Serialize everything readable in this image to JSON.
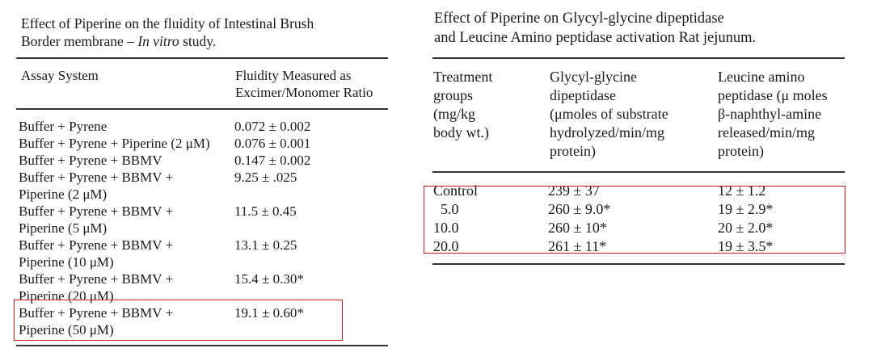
{
  "left_table": {
    "caption_line1": "Effect of Piperine on the fluidity of Intestinal Brush",
    "caption_line2_plain": "Border membrane – ",
    "caption_line2_italic": "In vitro",
    "caption_line2_end": " study.",
    "header_col1": "Assay System",
    "header_col2_line1": "Fluidity Measured as",
    "header_col2_line2": "Excimer/Monomer Ratio",
    "rows": [
      {
        "system_line1": "Buffer + Pyrene",
        "system_line2": "",
        "value": "0.072 ± 0.002"
      },
      {
        "system_line1": "Buffer + Pyrene + Piperine (2 μM)",
        "system_line2": "",
        "value": "0.076 ± 0.001"
      },
      {
        "system_line1": "Buffer + Pyrene + BBMV",
        "system_line2": "",
        "value": "0.147 ± 0.002"
      },
      {
        "system_line1": "Buffer + Pyrene + BBMV +",
        "system_line2": "Piperine (2 μM)",
        "value": "9.25 ± .025"
      },
      {
        "system_line1": "Buffer + Pyrene + BBMV +",
        "system_line2": "Piperine (5 μM)",
        "value": "11.5 ± 0.45"
      },
      {
        "system_line1": "Buffer + Pyrene + BBMV +",
        "system_line2": "Piperine (10 μM)",
        "value": "13.1 ± 0.25"
      },
      {
        "system_line1": "Buffer + Pyrene + BBMV +",
        "system_line2": "Piperine (20 μM)",
        "value": "15.4 ± 0.30*"
      },
      {
        "system_line1": "Buffer + Pyrene + BBMV +",
        "system_line2": "Piperine (50 μM)",
        "value": "19.1 ± 0.60*"
      }
    ]
  },
  "right_table": {
    "caption_line1": "Effect of Piperine on Glycyl-glycine dipeptidase",
    "caption_line2": "and Leucine Amino peptidase activation Rat jejunum.",
    "header_col1": [
      "Treatment",
      "groups",
      "(mg/kg",
      "body wt.)"
    ],
    "header_col2": [
      "Glycyl-glycine",
      "dipeptidase",
      "(μmoles of substrate",
      "hydrolyzed/min/mg",
      "protein)"
    ],
    "header_col3": [
      "Leucine amino",
      "peptidase (μ moles",
      "β-naphthyl-amine",
      "released/min/mg",
      "protein)"
    ],
    "rows": [
      {
        "group": "Control",
        "glycyl": "239 ± 37",
        "leucine": "12 ± 1.2"
      },
      {
        "group": "5.0",
        "glycyl": "260 ± 9.0*",
        "leucine": "19 ± 2.9*"
      },
      {
        "group": "10.0",
        "glycyl": "260 ± 10*",
        "leucine": "20 ± 2.0*"
      },
      {
        "group": "20.0",
        "glycyl": "261 ± 11*",
        "leucine": "19 ± 3.5*"
      }
    ]
  },
  "colors": {
    "highlight": "#c81e1e",
    "text": "#1a1a1a",
    "rule": "#333333"
  }
}
